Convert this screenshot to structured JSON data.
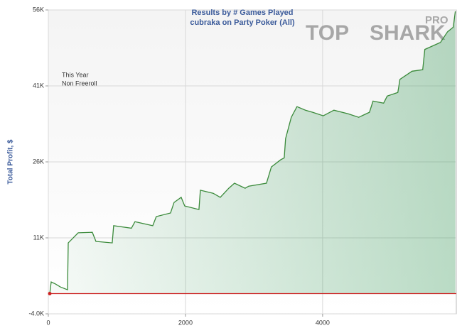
{
  "chart_data": {
    "type": "area",
    "title": "Results by # Games Played",
    "subtitle": "cubraka on Party Poker (All)",
    "y_label": "Total Profit, $",
    "annotations": [
      "This Year",
      "Non Freeroll"
    ],
    "logo": [
      "TOP",
      "SHARK",
      "PRO"
    ],
    "xlim": [
      0,
      5950
    ],
    "xticks": [
      0,
      2000,
      4000
    ],
    "ylim": [
      -4000,
      56000
    ],
    "yticks": [
      {
        "value": -4000,
        "label": "-4.0K"
      },
      {
        "value": 11000,
        "label": "11K"
      },
      {
        "value": 26000,
        "label": "26K"
      },
      {
        "value": 41000,
        "label": "41K"
      },
      {
        "value": 56000,
        "label": "56K"
      }
    ],
    "grid": true,
    "reference_line": {
      "value": 0,
      "color": "#cc2222"
    },
    "series": [
      {
        "name": "Total Profit",
        "color": "#3a8a3a",
        "x": [
          0,
          21,
          41,
          104,
          176,
          280,
          290,
          435,
          642,
          694,
          932,
          953,
          1212,
          1264,
          1523,
          1575,
          1782,
          1834,
          1937,
          1989,
          2197,
          2217,
          2404,
          2507,
          2632,
          2715,
          2870,
          2922,
          3181,
          3253,
          3388,
          3440,
          3460,
          3543,
          3626,
          3750,
          3854,
          4009,
          4165,
          4372,
          4527,
          4683,
          4735,
          4890,
          4942,
          5097,
          5128,
          5304,
          5460,
          5491,
          5719,
          5822,
          5905,
          5936
        ],
        "values": [
          0,
          0,
          2300,
          1900,
          1300,
          750,
          10000,
          12000,
          12100,
          10300,
          10000,
          13400,
          12900,
          14200,
          13400,
          15200,
          15900,
          18000,
          19000,
          17300,
          16600,
          20400,
          19800,
          19000,
          20800,
          21800,
          20800,
          21200,
          21800,
          25000,
          26400,
          26800,
          30600,
          34800,
          36900,
          36200,
          35800,
          35100,
          36200,
          35500,
          34800,
          35800,
          38000,
          37600,
          39000,
          39700,
          42300,
          43900,
          44200,
          48200,
          49600,
          51700,
          52600,
          55700
        ]
      }
    ]
  }
}
